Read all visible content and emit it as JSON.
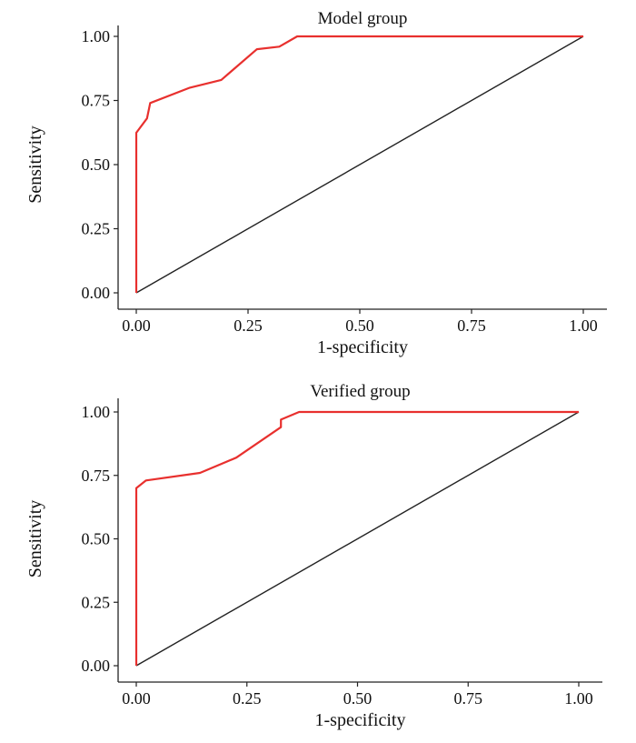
{
  "chart_data": [
    {
      "type": "line",
      "title": "Model group",
      "xlabel": "1-specificity",
      "ylabel": "Sensitivity",
      "xlim": [
        0,
        1
      ],
      "ylim": [
        0,
        1
      ],
      "xticks": [
        "0.00",
        "0.25",
        "0.50",
        "0.75",
        "1.00"
      ],
      "yticks": [
        "0.00",
        "0.25",
        "0.50",
        "0.75",
        "1.00"
      ],
      "grid": false,
      "series": [
        {
          "color": "#e8302e",
          "x": [
            0,
            0,
            0.024,
            0.031,
            0.12,
            0.19,
            0.27,
            0.32,
            0.36,
            1.0
          ],
          "y": [
            0,
            0.624,
            0.68,
            0.74,
            0.8,
            0.83,
            0.95,
            0.96,
            1.0,
            1.0
          ]
        },
        {
          "color": "#222222",
          "x": [
            0,
            1
          ],
          "y": [
            0,
            1
          ]
        }
      ]
    },
    {
      "type": "line",
      "title": "Verified group",
      "xlabel": "1-specificity",
      "ylabel": "Sensitivity",
      "xlim": [
        0,
        1
      ],
      "ylim": [
        0,
        1
      ],
      "xticks": [
        "0.00",
        "0.25",
        "0.50",
        "0.75",
        "1.00"
      ],
      "yticks": [
        "0.00",
        "0.25",
        "0.50",
        "0.75",
        "1.00"
      ],
      "grid": false,
      "series": [
        {
          "color": "#e8302e",
          "x": [
            0,
            0,
            0.022,
            0.144,
            0.226,
            0.327,
            0.327,
            0.368,
            1.0
          ],
          "y": [
            0,
            0.7,
            0.73,
            0.76,
            0.82,
            0.94,
            0.97,
            1.0,
            1.0
          ]
        },
        {
          "color": "#222222",
          "x": [
            0,
            1
          ],
          "y": [
            0,
            1
          ]
        }
      ]
    }
  ]
}
